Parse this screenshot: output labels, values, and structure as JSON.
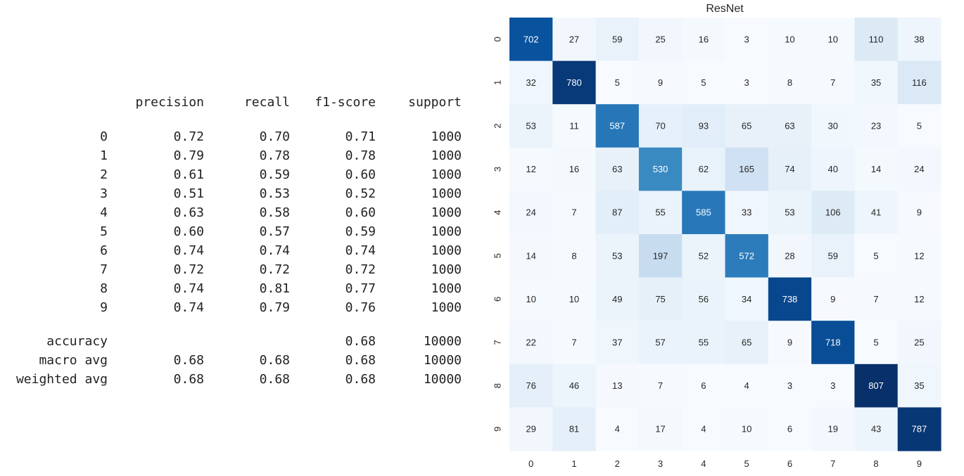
{
  "report": {
    "headers": [
      "precision",
      "recall",
      "f1-score",
      "support"
    ],
    "rows": [
      {
        "label": "0",
        "precision": "0.72",
        "recall": "0.70",
        "f1": "0.71",
        "support": "1000"
      },
      {
        "label": "1",
        "precision": "0.79",
        "recall": "0.78",
        "f1": "0.78",
        "support": "1000"
      },
      {
        "label": "2",
        "precision": "0.61",
        "recall": "0.59",
        "f1": "0.60",
        "support": "1000"
      },
      {
        "label": "3",
        "precision": "0.51",
        "recall": "0.53",
        "f1": "0.52",
        "support": "1000"
      },
      {
        "label": "4",
        "precision": "0.63",
        "recall": "0.58",
        "f1": "0.60",
        "support": "1000"
      },
      {
        "label": "5",
        "precision": "0.60",
        "recall": "0.57",
        "f1": "0.59",
        "support": "1000"
      },
      {
        "label": "6",
        "precision": "0.74",
        "recall": "0.74",
        "f1": "0.74",
        "support": "1000"
      },
      {
        "label": "7",
        "precision": "0.72",
        "recall": "0.72",
        "f1": "0.72",
        "support": "1000"
      },
      {
        "label": "8",
        "precision": "0.74",
        "recall": "0.81",
        "f1": "0.77",
        "support": "1000"
      },
      {
        "label": "9",
        "precision": "0.74",
        "recall": "0.79",
        "f1": "0.76",
        "support": "1000"
      }
    ],
    "summary": [
      {
        "label": "accuracy",
        "precision": "",
        "recall": "",
        "f1": "0.68",
        "support": "10000"
      },
      {
        "label": "macro avg",
        "precision": "0.68",
        "recall": "0.68",
        "f1": "0.68",
        "support": "10000"
      },
      {
        "label": "weighted avg",
        "precision": "0.68",
        "recall": "0.68",
        "f1": "0.68",
        "support": "10000"
      }
    ]
  },
  "chart_data": {
    "type": "heatmap",
    "title": "ResNet",
    "x_labels": [
      "0",
      "1",
      "2",
      "3",
      "4",
      "5",
      "6",
      "7",
      "8",
      "9"
    ],
    "y_labels": [
      "0",
      "1",
      "2",
      "3",
      "4",
      "5",
      "6",
      "7",
      "8",
      "9"
    ],
    "values": [
      [
        702,
        27,
        59,
        25,
        16,
        3,
        10,
        10,
        110,
        38
      ],
      [
        32,
        780,
        5,
        9,
        5,
        3,
        8,
        7,
        35,
        116
      ],
      [
        53,
        11,
        587,
        70,
        93,
        65,
        63,
        30,
        23,
        5
      ],
      [
        12,
        16,
        63,
        530,
        62,
        165,
        74,
        40,
        14,
        24
      ],
      [
        24,
        7,
        87,
        55,
        585,
        33,
        53,
        106,
        41,
        9
      ],
      [
        14,
        8,
        53,
        197,
        52,
        572,
        28,
        59,
        5,
        12
      ],
      [
        10,
        10,
        49,
        75,
        56,
        34,
        738,
        9,
        7,
        12
      ],
      [
        22,
        7,
        37,
        57,
        55,
        65,
        9,
        718,
        5,
        25
      ],
      [
        76,
        46,
        13,
        7,
        6,
        4,
        3,
        3,
        807,
        35
      ],
      [
        29,
        81,
        4,
        17,
        4,
        10,
        6,
        19,
        43,
        787
      ]
    ],
    "colormap": "Blues",
    "colorbar": false
  }
}
